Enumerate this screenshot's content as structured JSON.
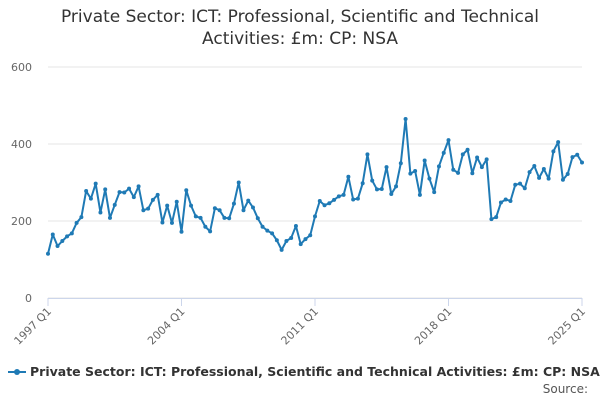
{
  "colors": {
    "series": "#1f7ab5",
    "grid": "#e6e6e6",
    "axis": "#ccd6eb"
  },
  "source_label": "Source:",
  "chart_data": {
    "type": "line",
    "title_lines": [
      "Private Sector: ICT: Professional, Scientific and Technical",
      "Activities: £m: CP: NSA"
    ],
    "xlabel": "",
    "ylabel": "",
    "ylim": [
      0,
      600
    ],
    "yticks": [
      0,
      200,
      400,
      600
    ],
    "grid": true,
    "legend_position": "bottom-left",
    "x_tick_labels": [
      {
        "label": "1997 Q1",
        "index": 0
      },
      {
        "label": "2004 Q1",
        "index": 28
      },
      {
        "label": "2011 Q1",
        "index": 56
      },
      {
        "label": "2018 Q1",
        "index": 84
      },
      {
        "label": "2025 Q1",
        "index": 112
      }
    ],
    "series": [
      {
        "name": "Private Sector: ICT: Professional, Scientific and Technical Activities: £m: CP: NSA",
        "values": [
          115,
          165,
          135,
          148,
          160,
          168,
          195,
          210,
          278,
          258,
          297,
          222,
          282,
          208,
          242,
          275,
          274,
          284,
          262,
          290,
          228,
          232,
          255,
          268,
          196,
          240,
          195,
          250,
          172,
          280,
          240,
          212,
          208,
          185,
          173,
          233,
          228,
          208,
          207,
          245,
          300,
          228,
          253,
          235,
          207,
          185,
          175,
          168,
          150,
          125,
          148,
          156,
          187,
          140,
          153,
          163,
          212,
          252,
          241,
          246,
          255,
          264,
          268,
          315,
          256,
          258,
          298,
          373,
          305,
          282,
          283,
          340,
          270,
          290,
          350,
          465,
          323,
          330,
          268,
          357,
          310,
          275,
          342,
          377,
          410,
          333,
          325,
          373,
          385,
          324,
          365,
          340,
          360,
          205,
          210,
          248,
          256,
          252,
          294,
          297,
          285,
          327,
          343,
          312,
          335,
          310,
          381,
          405,
          307,
          322,
          366,
          372,
          352
        ]
      }
    ]
  }
}
